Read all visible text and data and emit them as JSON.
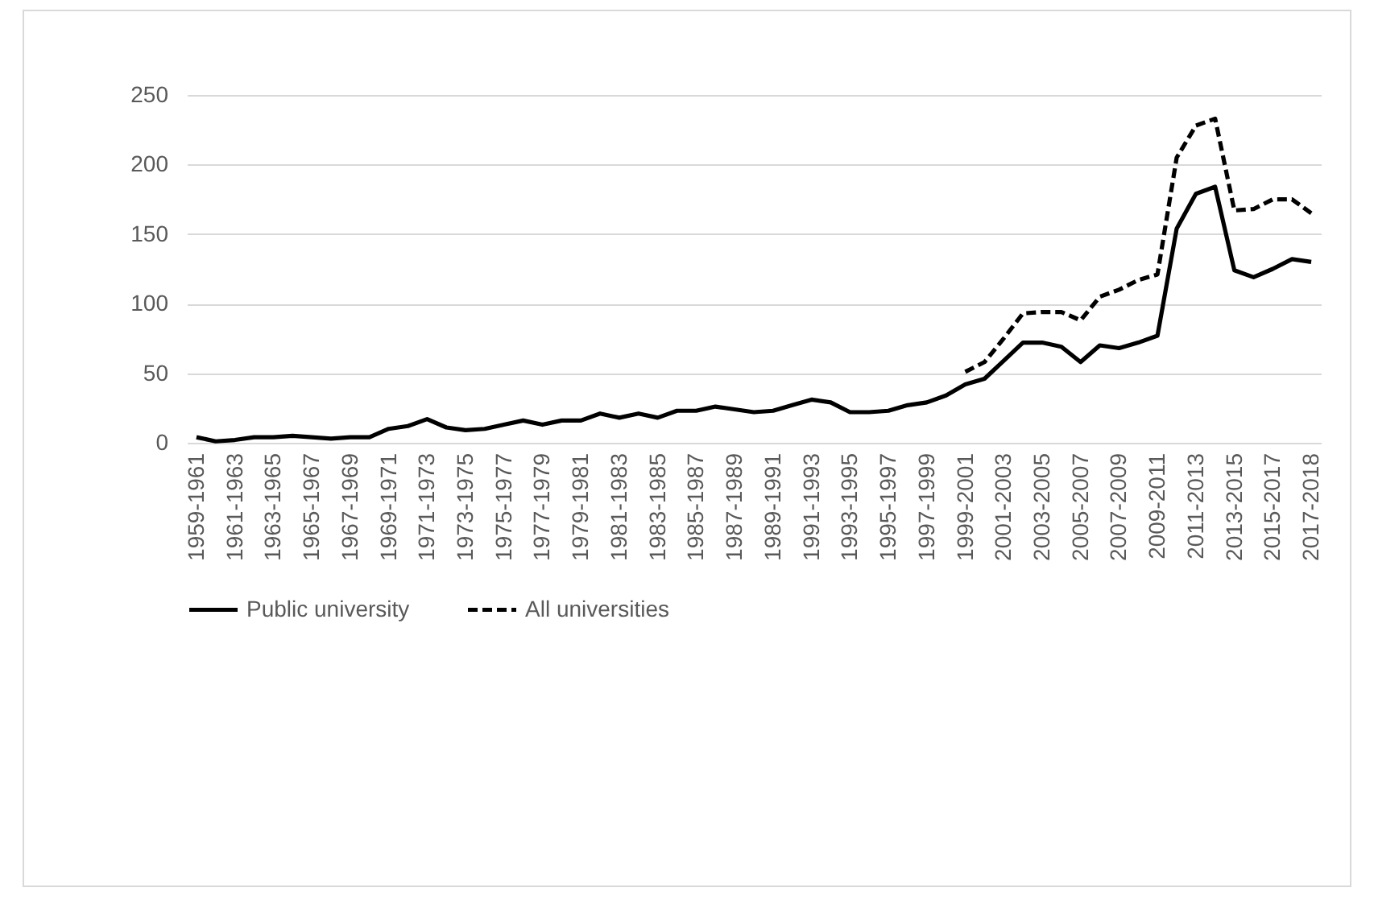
{
  "chart_data": {
    "type": "line",
    "categories": [
      "1959-1961",
      null,
      "1961-1963",
      null,
      "1963-1965",
      null,
      "1965-1967",
      null,
      "1967-1969",
      null,
      "1969-1971",
      null,
      "1971-1973",
      null,
      "1973-1975",
      null,
      "1975-1977",
      null,
      "1977-1979",
      null,
      "1979-1981",
      null,
      "1981-1983",
      null,
      "1983-1985",
      null,
      "1985-1987",
      null,
      "1987-1989",
      null,
      "1989-1991",
      null,
      "1991-1993",
      null,
      "1993-1995",
      null,
      "1995-1997",
      null,
      "1997-1999",
      null,
      "1999-2001",
      null,
      "2001-2003",
      null,
      "2003-2005",
      null,
      "2005-2007",
      null,
      "2007-2009",
      null,
      "2009-2011",
      null,
      "2011-2013",
      null,
      "2013-2015",
      null,
      "2015-2017",
      null,
      "2017-2018"
    ],
    "series": [
      {
        "name": "Public university",
        "color": "#000000",
        "line_style": "solid",
        "values": [
          4,
          1,
          2,
          4,
          4,
          5,
          4,
          3,
          4,
          4,
          10,
          12,
          17,
          11,
          9,
          10,
          13,
          16,
          13,
          16,
          16,
          21,
          18,
          21,
          18,
          23,
          23,
          26,
          24,
          22,
          23,
          27,
          31,
          29,
          22,
          22,
          23,
          27,
          29,
          34,
          42,
          46,
          59,
          72,
          72,
          69,
          58,
          70,
          68,
          72,
          77,
          154,
          179,
          184,
          124,
          119,
          125,
          132,
          130
        ]
      },
      {
        "name": "All universities",
        "color": "#000000",
        "line_style": "dashed",
        "values": [
          null,
          null,
          null,
          null,
          null,
          null,
          null,
          null,
          null,
          null,
          null,
          null,
          null,
          null,
          null,
          null,
          null,
          null,
          null,
          null,
          null,
          null,
          null,
          null,
          null,
          null,
          null,
          null,
          null,
          null,
          null,
          null,
          null,
          null,
          null,
          null,
          null,
          null,
          null,
          null,
          51,
          58,
          75,
          93,
          94,
          94,
          88,
          105,
          110,
          117,
          121,
          205,
          228,
          233,
          167,
          168,
          175,
          175,
          165
        ]
      }
    ],
    "ylim": [
      0,
      250
    ],
    "yticks": [
      0,
      50,
      100,
      150,
      200,
      250
    ],
    "grid": "y",
    "legend": "bottom"
  }
}
